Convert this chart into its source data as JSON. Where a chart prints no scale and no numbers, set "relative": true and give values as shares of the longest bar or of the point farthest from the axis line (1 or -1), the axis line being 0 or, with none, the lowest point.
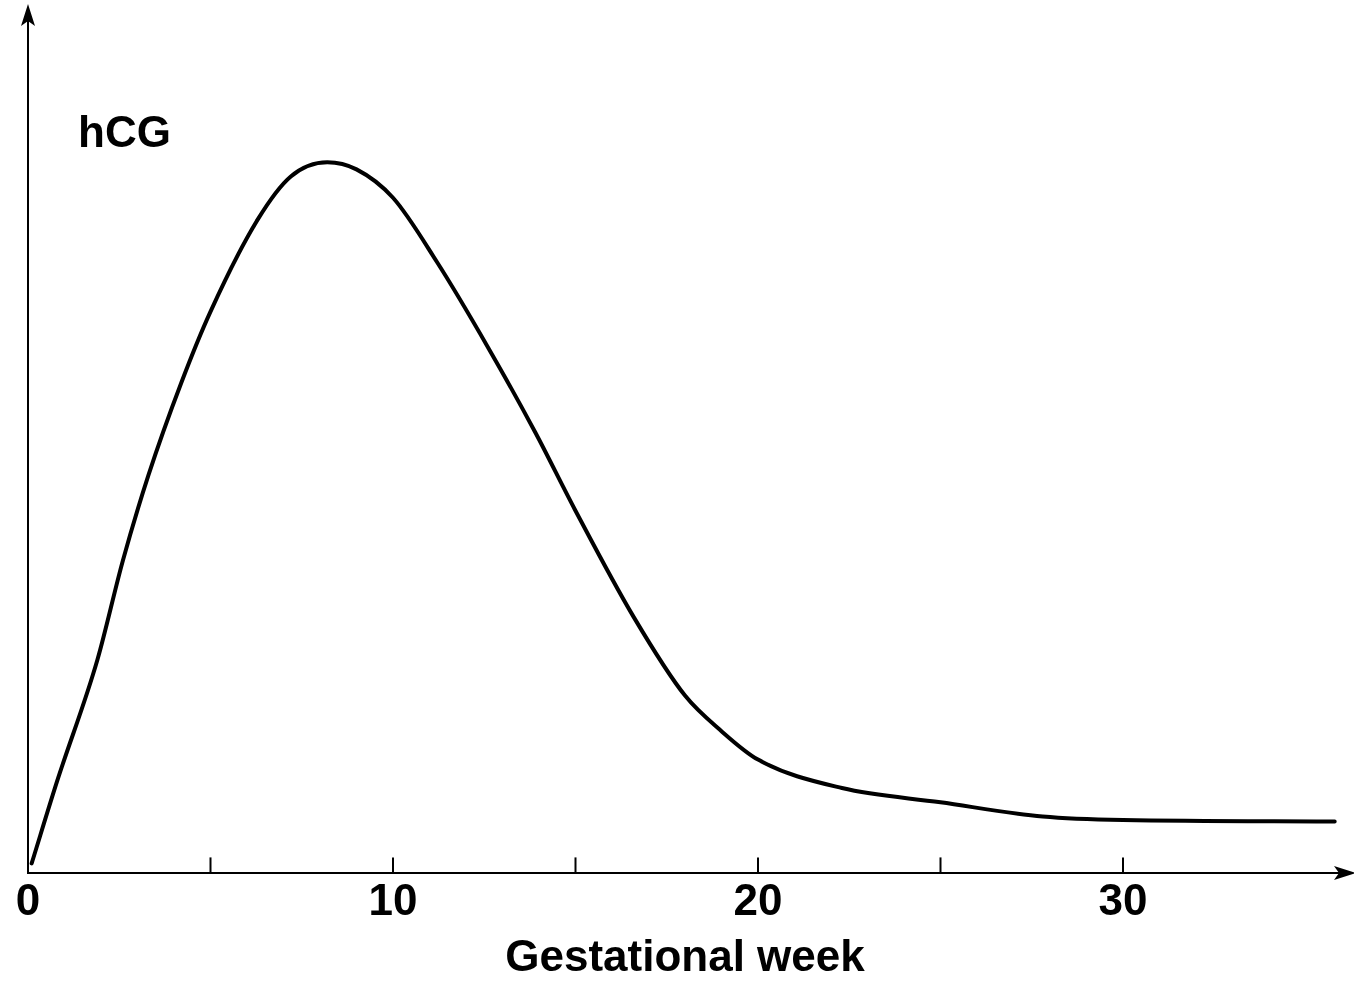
{
  "chart_data": {
    "type": "line",
    "relative": true,
    "ylabel": "hCG",
    "xlabel": "Gestational week",
    "x": [
      0.1,
      0.8,
      1.9,
      2.6,
      3.3,
      4.2,
      5,
      6.3,
      7.2,
      8.2,
      9,
      10,
      11.2,
      12.6,
      13.9,
      15,
      16.6,
      18,
      19,
      20,
      22.3,
      25,
      27.8,
      30,
      35.8
    ],
    "series": [
      {
        "color": "#000000",
        "values": [
          0.014,
          0.13,
          0.3,
          0.44,
          0.56,
          0.69,
          0.79,
          0.92,
          0.98,
          1,
          0.99,
          0.95,
          0.86,
          0.74,
          0.62,
          0.51,
          0.36,
          0.25,
          0.2,
          0.16,
          0.12,
          0.1,
          0.08,
          0.075,
          0.073
        ]
      }
    ],
    "xlim": [
      0,
      36
    ],
    "xticks": [
      0,
      {
        "value": 5,
        "label": null
      },
      10,
      {
        "value": 15,
        "label": null
      },
      20,
      {
        "value": 25,
        "label": null
      },
      30
    ],
    "grid": false,
    "legend": false,
    "marker": "none",
    "line_style": "solid"
  }
}
